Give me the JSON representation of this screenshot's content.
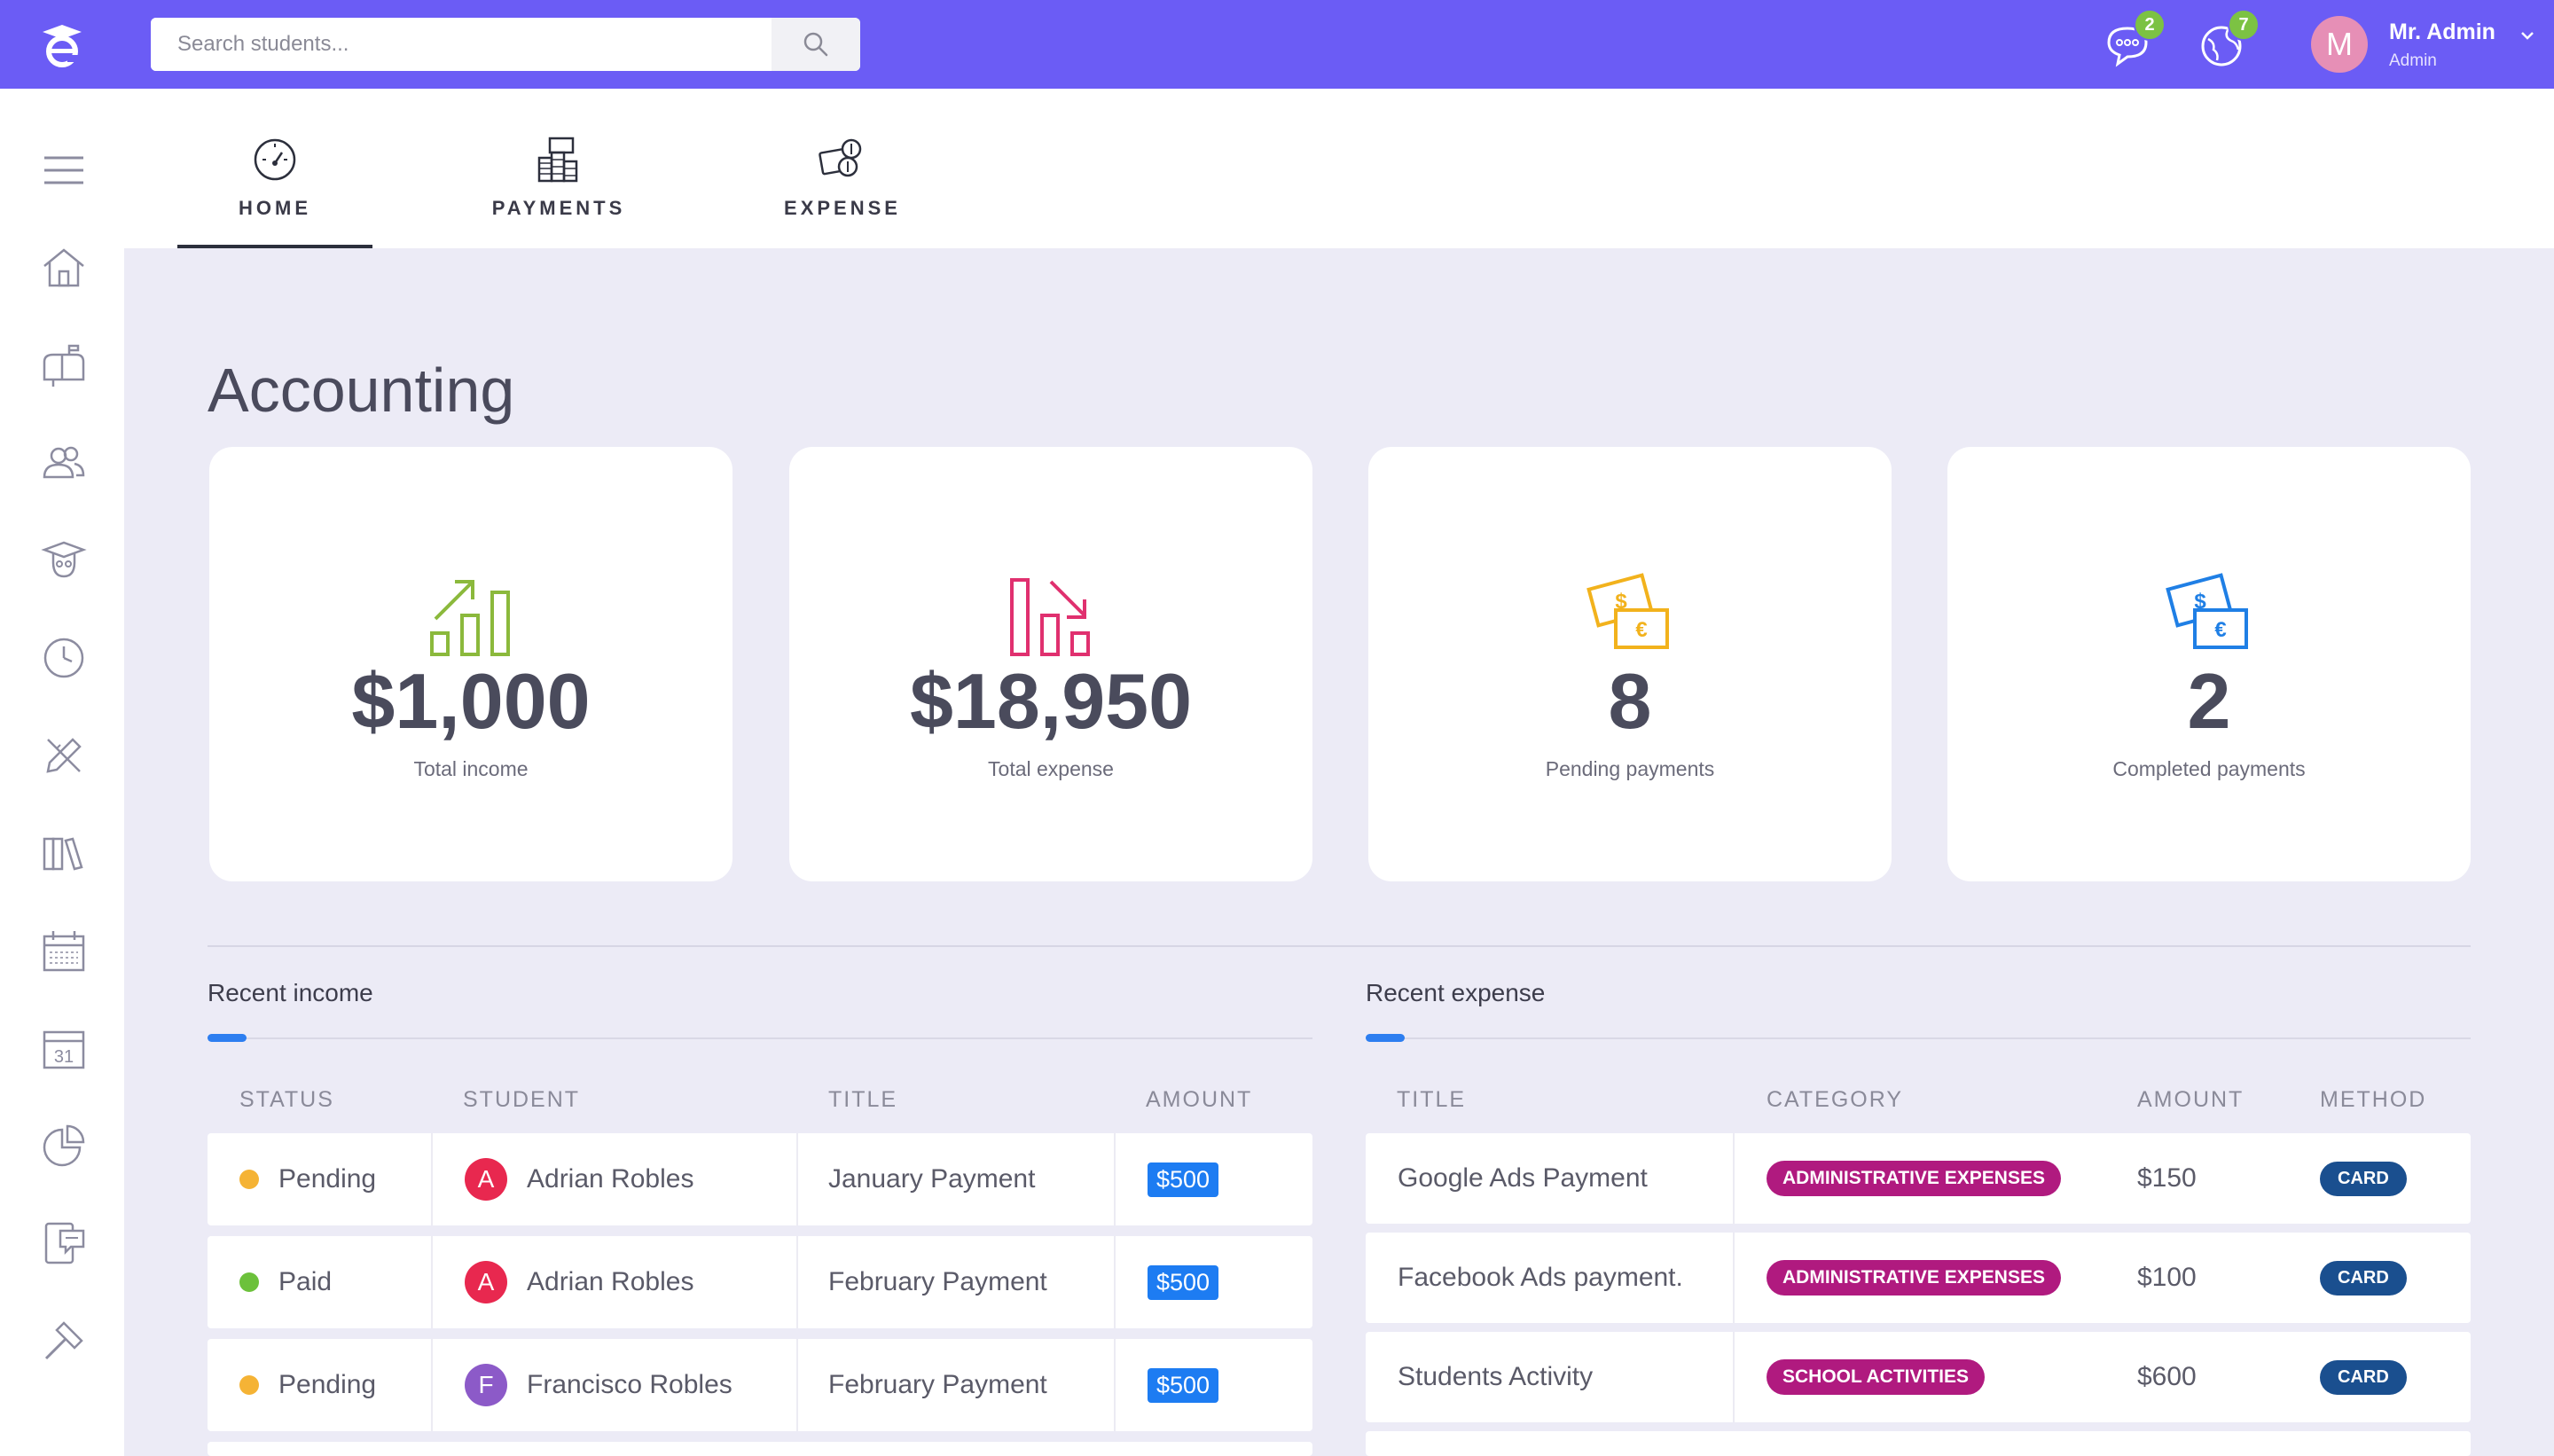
{
  "app": {
    "logo_letter": "e"
  },
  "search": {
    "placeholder": "Search students..."
  },
  "notifications": {
    "messages_count": "2",
    "globe_count": "7"
  },
  "user": {
    "avatar_letter": "M",
    "name": "Mr. Admin",
    "role": "Admin"
  },
  "tabs": [
    {
      "label": "HOME",
      "icon": "dashboard-gauge-icon",
      "active": true
    },
    {
      "label": "PAYMENTS",
      "icon": "money-stack-icon",
      "active": false
    },
    {
      "label": "EXPENSE",
      "icon": "cash-coins-icon",
      "active": false
    }
  ],
  "page": {
    "title": "Accounting"
  },
  "stats": [
    {
      "value": "$1,000",
      "label": "Total income",
      "icon": "chart-growth-icon",
      "color": "#8bb93c"
    },
    {
      "value": "$18,950",
      "label": "Total expense",
      "icon": "chart-decline-icon",
      "color": "#e0306f"
    },
    {
      "value": "8",
      "label": "Pending payments",
      "icon": "banknotes-icon",
      "color": "#f2b21c"
    },
    {
      "value": "2",
      "label": "Completed payments",
      "icon": "banknotes-icon",
      "color": "#1f7fe5"
    }
  ],
  "recent_income": {
    "title": "Recent income",
    "columns": [
      "STATUS",
      "STUDENT",
      "TITLE",
      "AMOUNT"
    ],
    "rows": [
      {
        "status": "Pending",
        "status_color": "#f5b335",
        "student": "Adrian Robles",
        "initial": "A",
        "avatar_color": "#e8284f",
        "title": "January Payment",
        "amount": "$500"
      },
      {
        "status": "Paid",
        "status_color": "#6cc13b",
        "student": "Adrian Robles",
        "initial": "A",
        "avatar_color": "#e8284f",
        "title": "February Payment",
        "amount": "$500"
      },
      {
        "status": "Pending",
        "status_color": "#f5b335",
        "student": "Francisco Robles",
        "initial": "F",
        "avatar_color": "#8c5ac8",
        "title": "February Payment",
        "amount": "$500"
      }
    ]
  },
  "recent_expense": {
    "title": "Recent expense",
    "columns": [
      "TITLE",
      "CATEGORY",
      "AMOUNT",
      "METHOD"
    ],
    "rows": [
      {
        "title": "Google Ads Payment",
        "category": "ADMINISTRATIVE EXPENSES",
        "category_color": "#b01a7f",
        "amount": "$150",
        "method": "CARD"
      },
      {
        "title": "Facebook Ads payment.",
        "category": "ADMINISTRATIVE EXPENSES",
        "category_color": "#b01a7f",
        "amount": "$100",
        "method": "CARD"
      },
      {
        "title": "Students Activity",
        "category": "SCHOOL ACTIVITIES",
        "category_color": "#b01a7f",
        "amount": "$600",
        "method": "CARD"
      }
    ]
  },
  "sidebar": {
    "items": [
      {
        "icon": "menu-icon"
      },
      {
        "icon": "home-icon"
      },
      {
        "icon": "mailbox-icon"
      },
      {
        "icon": "users-icon"
      },
      {
        "icon": "graduate-icon"
      },
      {
        "icon": "clock-icon"
      },
      {
        "icon": "pencil-ruler-icon"
      },
      {
        "icon": "books-icon"
      },
      {
        "icon": "calendar-grid-icon"
      },
      {
        "icon": "calendar-31-icon"
      },
      {
        "icon": "pie-chart-icon"
      },
      {
        "icon": "chat-board-icon"
      },
      {
        "icon": "hammer-icon"
      }
    ],
    "calendar_day": "31"
  }
}
